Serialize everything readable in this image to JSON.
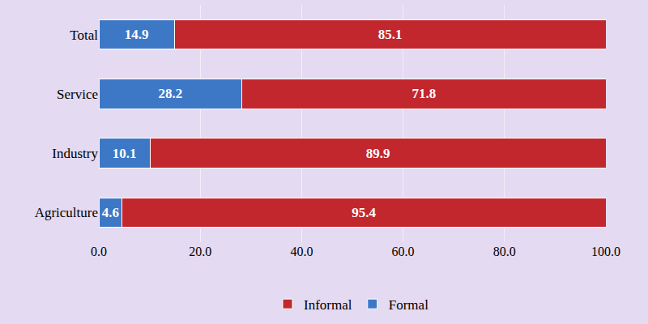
{
  "chart_data": {
    "type": "bar",
    "orientation": "horizontal",
    "stacked": true,
    "data_labels": true,
    "categories": [
      "Total",
      "Service",
      "Industry",
      "Agriculture"
    ],
    "series": [
      {
        "name": "Formal",
        "color": "#3d78c6",
        "values": [
          14.9,
          28.2,
          10.1,
          4.6
        ]
      },
      {
        "name": "Informal",
        "color": "#c1272d",
        "values": [
          85.1,
          71.8,
          89.9,
          95.4
        ]
      }
    ],
    "xlim": [
      0,
      100
    ],
    "xticks": [
      {
        "value": 0,
        "label": "0.0"
      },
      {
        "value": 20,
        "label": "20.0"
      },
      {
        "value": 40,
        "label": "40.0"
      },
      {
        "value": 60,
        "label": "60.0"
      },
      {
        "value": 80,
        "label": "80.0"
      },
      {
        "value": 100,
        "label": "100.0"
      }
    ],
    "grid": true,
    "legend": "bottom"
  }
}
